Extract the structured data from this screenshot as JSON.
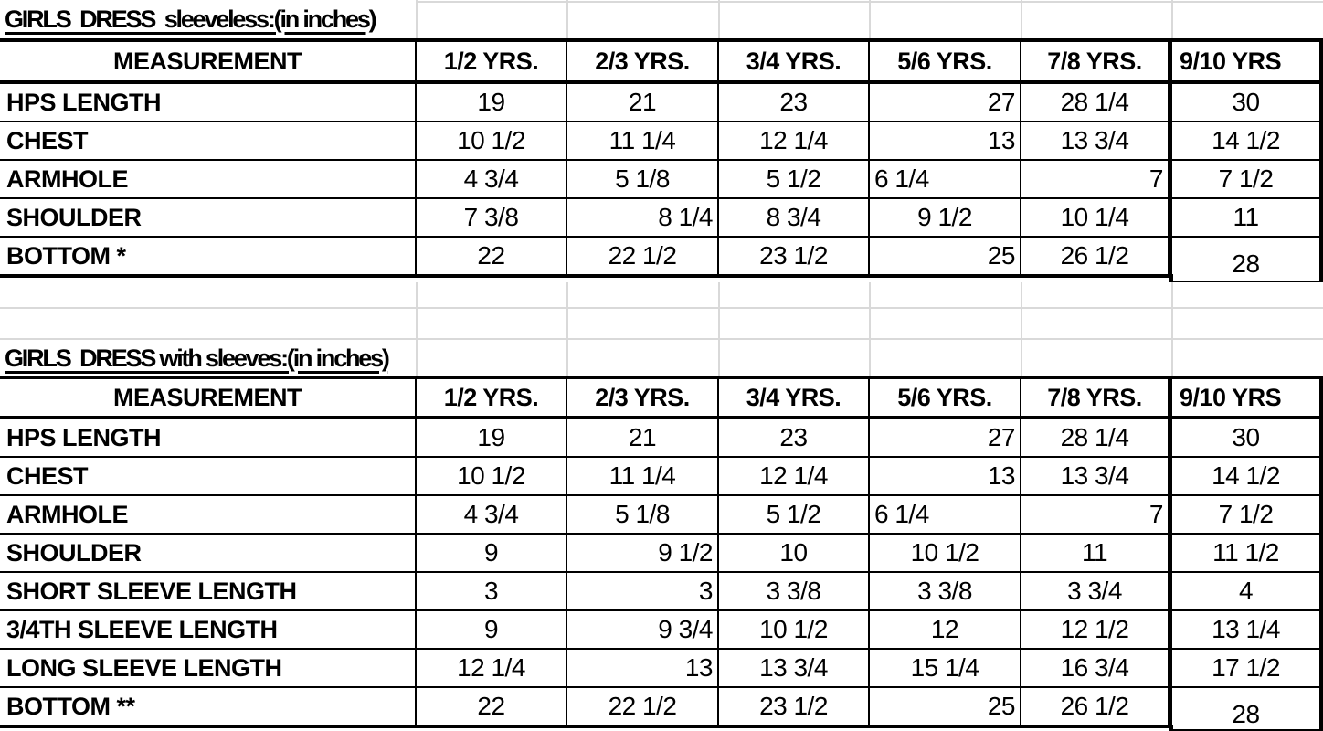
{
  "colors": {
    "background": "#ffffff",
    "table_border": "#000000",
    "gridline": "#d9d9d9",
    "text": "#000000"
  },
  "tables": [
    {
      "title": "GIRLS  DRESS  sleeveless:(in inches)",
      "columns": [
        "MEASUREMENT",
        "1/2 YRS.",
        "2/3 YRS.",
        "3/4 YRS.",
        "5/6 YRS.",
        "7/8 YRS.",
        "9/10 YRS"
      ],
      "rows": [
        {
          "label": "HPS LENGTH",
          "values": [
            "19",
            "21",
            "23",
            "27",
            "28 1/4",
            "30"
          ],
          "aligns": [
            "c",
            "c",
            "c",
            "r",
            "c",
            "c"
          ]
        },
        {
          "label": "CHEST",
          "values": [
            "10 1/2",
            "11 1/4",
            "12 1/4",
            "13",
            "13 3/4",
            "14 1/2"
          ],
          "aligns": [
            "c",
            "c",
            "c",
            "r",
            "c",
            "c"
          ]
        },
        {
          "label": "ARMHOLE",
          "values": [
            "4 3/4",
            "5 1/8",
            "5 1/2",
            "6 1/4",
            "7",
            "7 1/2"
          ],
          "aligns": [
            "c",
            "c",
            "c",
            "l",
            "r",
            "c"
          ]
        },
        {
          "label": "SHOULDER",
          "values": [
            "7 3/8",
            "8 1/4",
            "8 3/4",
            "9 1/2",
            "10 1/4",
            "11"
          ],
          "aligns": [
            "c",
            "r",
            "c",
            "c",
            "c",
            "c"
          ]
        },
        {
          "label": "BOTTOM *",
          "values": [
            "22",
            "22 1/2",
            "23 1/2",
            "25",
            "26 1/2",
            "28"
          ],
          "aligns": [
            "c",
            "c",
            "c",
            "r",
            "c",
            "c"
          ]
        }
      ]
    },
    {
      "title": "GIRLS  DRESS with sleeves:(in inches)",
      "columns": [
        "MEASUREMENT",
        "1/2 YRS.",
        "2/3 YRS.",
        "3/4 YRS.",
        "5/6 YRS.",
        "7/8 YRS.",
        "9/10 YRS"
      ],
      "rows": [
        {
          "label": "HPS LENGTH",
          "values": [
            "19",
            "21",
            "23",
            "27",
            "28 1/4",
            "30"
          ],
          "aligns": [
            "c",
            "c",
            "c",
            "r",
            "c",
            "c"
          ]
        },
        {
          "label": "CHEST",
          "values": [
            "10 1/2",
            "11 1/4",
            "12 1/4",
            "13",
            "13 3/4",
            "14 1/2"
          ],
          "aligns": [
            "c",
            "c",
            "c",
            "r",
            "c",
            "c"
          ]
        },
        {
          "label": "ARMHOLE",
          "values": [
            "4 3/4",
            "5 1/8",
            "5 1/2",
            "6 1/4",
            "7",
            "7 1/2"
          ],
          "aligns": [
            "c",
            "c",
            "c",
            "l",
            "r",
            "c"
          ]
        },
        {
          "label": "SHOULDER",
          "values": [
            "9",
            "9 1/2",
            "10",
            "10 1/2",
            "11",
            "11 1/2"
          ],
          "aligns": [
            "c",
            "r",
            "c",
            "c",
            "c",
            "c"
          ]
        },
        {
          "label": "SHORT SLEEVE LENGTH",
          "values": [
            "3",
            "3",
            "3 3/8",
            "3 3/8",
            "3 3/4",
            "4"
          ],
          "aligns": [
            "c",
            "r",
            "c",
            "c",
            "c",
            "c"
          ]
        },
        {
          "label": "3/4TH SLEEVE LENGTH",
          "values": [
            "9",
            "9 3/4",
            "10 1/2",
            "12",
            "12 1/2",
            "13 1/4"
          ],
          "aligns": [
            "c",
            "r",
            "c",
            "c",
            "c",
            "c"
          ]
        },
        {
          "label": "LONG SLEEVE LENGTH",
          "values": [
            "12 1/4",
            "13",
            "13 3/4",
            "15 1/4",
            "16 3/4",
            "17 1/2"
          ],
          "aligns": [
            "c",
            "r",
            "c",
            "c",
            "c",
            "c"
          ]
        },
        {
          "label": "BOTTOM **",
          "values": [
            "22",
            "22 1/2",
            "23 1/2",
            "25",
            "26 1/2",
            "28"
          ],
          "aligns": [
            "c",
            "c",
            "c",
            "r",
            "c",
            "c"
          ]
        }
      ]
    }
  ]
}
